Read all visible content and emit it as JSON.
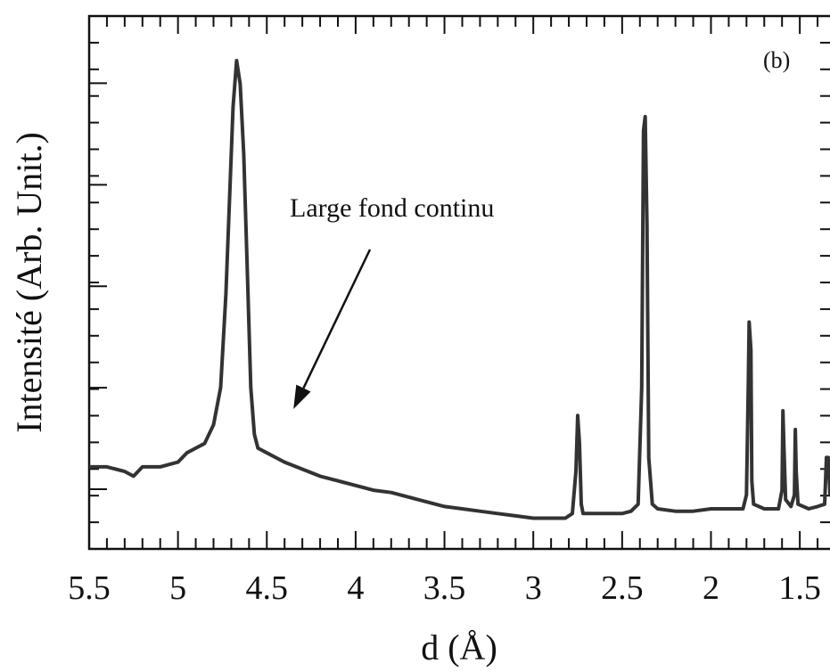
{
  "chart_data": {
    "type": "line",
    "title": "",
    "panel_label": "(b)",
    "xlabel": "d (Å)",
    "ylabel": "Intensité (Arb. Unit.)",
    "x_reversed": true,
    "xlim": [
      5.5,
      1.33
    ],
    "ylim": [
      0,
      1.0
    ],
    "x_ticks": [
      5.5,
      5,
      4.5,
      4,
      3.5,
      3,
      2.5,
      2,
      1.5
    ],
    "x_tick_labels": [
      "5.5",
      "5",
      "4.5",
      "4",
      "3.5",
      "3",
      "2.5",
      "2",
      "1.5"
    ],
    "y_ticks_labeled": false,
    "grid": false,
    "legend": "none",
    "annotation": {
      "text": "Large fond continu",
      "points_to": [
        4.35,
        0.25
      ]
    },
    "series": [
      {
        "color": "#333333",
        "points": [
          [
            5.5,
            0.13
          ],
          [
            5.4,
            0.13
          ],
          [
            5.3,
            0.12
          ],
          [
            5.25,
            0.11
          ],
          [
            5.2,
            0.13
          ],
          [
            5.1,
            0.13
          ],
          [
            5.0,
            0.14
          ],
          [
            4.95,
            0.16
          ],
          [
            4.9,
            0.17
          ],
          [
            4.85,
            0.18
          ],
          [
            4.8,
            0.22
          ],
          [
            4.76,
            0.3
          ],
          [
            4.73,
            0.5
          ],
          [
            4.71,
            0.7
          ],
          [
            4.69,
            0.9
          ],
          [
            4.67,
            1.0
          ],
          [
            4.65,
            0.95
          ],
          [
            4.63,
            0.8
          ],
          [
            4.61,
            0.55
          ],
          [
            4.59,
            0.3
          ],
          [
            4.57,
            0.2
          ],
          [
            4.55,
            0.17
          ],
          [
            4.5,
            0.16
          ],
          [
            4.4,
            0.14
          ],
          [
            4.3,
            0.125
          ],
          [
            4.2,
            0.11
          ],
          [
            4.1,
            0.1
          ],
          [
            4.0,
            0.09
          ],
          [
            3.9,
            0.08
          ],
          [
            3.8,
            0.075
          ],
          [
            3.7,
            0.065
          ],
          [
            3.6,
            0.055
          ],
          [
            3.5,
            0.045
          ],
          [
            3.4,
            0.04
          ],
          [
            3.3,
            0.035
          ],
          [
            3.2,
            0.03
          ],
          [
            3.1,
            0.025
          ],
          [
            3.0,
            0.02
          ],
          [
            2.9,
            0.02
          ],
          [
            2.82,
            0.02
          ],
          [
            2.78,
            0.03
          ],
          [
            2.76,
            0.12
          ],
          [
            2.75,
            0.24
          ],
          [
            2.74,
            0.18
          ],
          [
            2.73,
            0.05
          ],
          [
            2.72,
            0.03
          ],
          [
            2.6,
            0.03
          ],
          [
            2.5,
            0.03
          ],
          [
            2.45,
            0.035
          ],
          [
            2.41,
            0.05
          ],
          [
            2.39,
            0.3
          ],
          [
            2.38,
            0.85
          ],
          [
            2.37,
            0.88
          ],
          [
            2.36,
            0.65
          ],
          [
            2.35,
            0.15
          ],
          [
            2.33,
            0.05
          ],
          [
            2.3,
            0.04
          ],
          [
            2.2,
            0.035
          ],
          [
            2.1,
            0.035
          ],
          [
            2.0,
            0.04
          ],
          [
            1.9,
            0.04
          ],
          [
            1.82,
            0.04
          ],
          [
            1.8,
            0.07
          ],
          [
            1.79,
            0.3
          ],
          [
            1.785,
            0.44
          ],
          [
            1.775,
            0.38
          ],
          [
            1.77,
            0.1
          ],
          [
            1.76,
            0.05
          ],
          [
            1.7,
            0.04
          ],
          [
            1.62,
            0.04
          ],
          [
            1.6,
            0.08
          ],
          [
            1.595,
            0.25
          ],
          [
            1.59,
            0.18
          ],
          [
            1.58,
            0.06
          ],
          [
            1.55,
            0.045
          ],
          [
            1.53,
            0.07
          ],
          [
            1.525,
            0.21
          ],
          [
            1.52,
            0.12
          ],
          [
            1.51,
            0.05
          ],
          [
            1.45,
            0.04
          ],
          [
            1.4,
            0.045
          ],
          [
            1.36,
            0.05
          ],
          [
            1.35,
            0.15
          ],
          [
            1.34,
            0.15
          ],
          [
            1.33,
            0.07
          ]
        ]
      }
    ]
  }
}
